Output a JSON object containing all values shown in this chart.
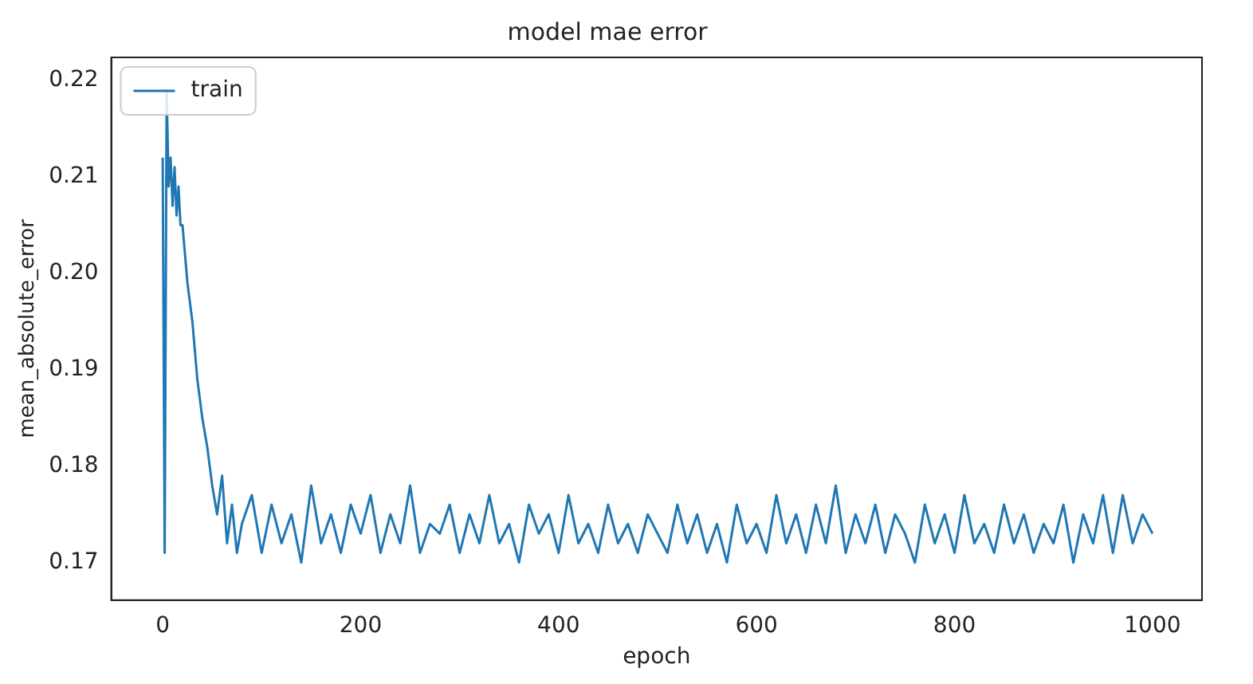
{
  "chart_data": {
    "type": "line",
    "title": "model mae error",
    "xlabel": "epoch",
    "ylabel": "mean_absolute_error",
    "xlim": [
      -52,
      1050
    ],
    "ylim": [
      0.1661,
      0.2224
    ],
    "xticks": [
      0,
      200,
      400,
      600,
      800,
      1000
    ],
    "yticks": [
      {
        "value": 0.17,
        "label": "0.17"
      },
      {
        "value": 0.18,
        "label": "0.18"
      },
      {
        "value": 0.19,
        "label": "0.19"
      },
      {
        "value": 0.2,
        "label": "0.20"
      },
      {
        "value": 0.21,
        "label": "0.21"
      },
      {
        "value": 0.22,
        "label": "0.22"
      }
    ],
    "legend": "top left",
    "grid": false,
    "marker": "none",
    "line_style": "solid",
    "series": [
      {
        "name": "train",
        "color": "#1f77b4",
        "x": [
          0,
          2,
          4,
          6,
          8,
          10,
          12,
          14,
          16,
          18,
          20,
          25,
          30,
          35,
          40,
          45,
          50,
          55,
          60,
          65,
          70,
          75,
          80,
          90,
          100,
          110,
          120,
          130,
          140,
          150,
          160,
          170,
          180,
          190,
          200,
          210,
          220,
          230,
          240,
          250,
          260,
          270,
          280,
          290,
          300,
          310,
          320,
          330,
          340,
          350,
          360,
          370,
          380,
          390,
          400,
          410,
          420,
          430,
          440,
          450,
          460,
          470,
          480,
          490,
          500,
          510,
          520,
          530,
          540,
          550,
          560,
          570,
          580,
          590,
          600,
          610,
          620,
          630,
          640,
          650,
          660,
          670,
          680,
          690,
          700,
          710,
          720,
          730,
          740,
          750,
          760,
          770,
          780,
          790,
          800,
          810,
          820,
          830,
          840,
          850,
          860,
          870,
          880,
          890,
          900,
          910,
          920,
          930,
          940,
          950,
          960,
          970,
          980,
          990,
          1000
        ],
        "values": [
          0.212,
          0.171,
          0.219,
          0.209,
          0.212,
          0.207,
          0.211,
          0.206,
          0.209,
          0.205,
          0.205,
          0.199,
          0.195,
          0.189,
          0.185,
          0.182,
          0.178,
          0.175,
          0.179,
          0.172,
          0.176,
          0.171,
          0.174,
          0.177,
          0.171,
          0.176,
          0.172,
          0.175,
          0.17,
          0.178,
          0.172,
          0.175,
          0.171,
          0.176,
          0.173,
          0.177,
          0.171,
          0.175,
          0.172,
          0.178,
          0.171,
          0.174,
          0.173,
          0.176,
          0.171,
          0.175,
          0.172,
          0.177,
          0.172,
          0.174,
          0.17,
          0.176,
          0.173,
          0.175,
          0.171,
          0.177,
          0.172,
          0.174,
          0.171,
          0.176,
          0.172,
          0.174,
          0.171,
          0.175,
          0.173,
          0.171,
          0.176,
          0.172,
          0.175,
          0.171,
          0.174,
          0.17,
          0.176,
          0.172,
          0.174,
          0.171,
          0.177,
          0.172,
          0.175,
          0.171,
          0.176,
          0.172,
          0.178,
          0.171,
          0.175,
          0.172,
          0.176,
          0.171,
          0.175,
          0.173,
          0.17,
          0.176,
          0.172,
          0.175,
          0.171,
          0.177,
          0.172,
          0.174,
          0.171,
          0.176,
          0.172,
          0.175,
          0.171,
          0.174,
          0.172,
          0.176,
          0.17,
          0.175,
          0.172,
          0.177,
          0.171,
          0.177,
          0.172,
          0.175,
          0.173
        ]
      }
    ]
  }
}
